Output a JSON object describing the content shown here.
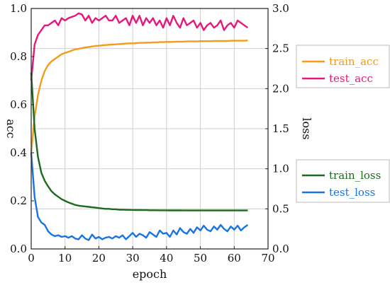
{
  "chart_data": {
    "type": "line",
    "xlabel": "epoch",
    "ylabel_left": "acc",
    "ylabel_right": "loss",
    "xlim": [
      0,
      70
    ],
    "ylim_left": [
      0.0,
      1.0
    ],
    "ylim_right": [
      0.0,
      3.0
    ],
    "x_ticks": [
      0,
      10,
      20,
      30,
      40,
      50,
      60,
      70
    ],
    "x_tick_labels": [
      "0",
      "10",
      "20",
      "30",
      "40",
      "50",
      "60",
      "70"
    ],
    "y_left_ticks": [
      0.0,
      0.2,
      0.4,
      0.6,
      0.8,
      1.0
    ],
    "y_left_tick_labels": [
      "0.0",
      "0.2",
      "0.4",
      "0.6",
      "0.8",
      "1.0"
    ],
    "y_right_ticks": [
      0.0,
      0.5,
      1.0,
      1.5,
      2.0,
      2.5,
      3.0
    ],
    "y_right_tick_labels": [
      "0.0",
      "0.5",
      "1.0",
      "1.5",
      "2.0",
      "2.5",
      "3.0"
    ],
    "grid": true,
    "x": [
      0,
      1,
      2,
      3,
      4,
      5,
      6,
      7,
      8,
      9,
      10,
      11,
      12,
      13,
      14,
      15,
      16,
      17,
      18,
      19,
      20,
      21,
      22,
      23,
      24,
      25,
      26,
      27,
      28,
      29,
      30,
      31,
      32,
      33,
      34,
      35,
      36,
      37,
      38,
      39,
      40,
      41,
      42,
      43,
      44,
      45,
      46,
      47,
      48,
      49,
      50,
      51,
      52,
      53,
      54,
      55,
      56,
      57,
      58,
      59,
      60,
      61,
      62,
      63,
      64
    ],
    "series": [
      {
        "name": "train_acc",
        "axis": "left",
        "color": "#f39b1c",
        "values": [
          0.4,
          0.55,
          0.64,
          0.7,
          0.74,
          0.765,
          0.78,
          0.79,
          0.8,
          0.81,
          0.815,
          0.82,
          0.825,
          0.83,
          0.832,
          0.835,
          0.838,
          0.84,
          0.842,
          0.844,
          0.845,
          0.847,
          0.848,
          0.849,
          0.85,
          0.851,
          0.852,
          0.853,
          0.854,
          0.855,
          0.855,
          0.856,
          0.857,
          0.857,
          0.858,
          0.858,
          0.859,
          0.859,
          0.86,
          0.86,
          0.861,
          0.861,
          0.861,
          0.862,
          0.862,
          0.862,
          0.863,
          0.863,
          0.863,
          0.863,
          0.864,
          0.864,
          0.864,
          0.864,
          0.865,
          0.865,
          0.865,
          0.865,
          0.865,
          0.866,
          0.866,
          0.866,
          0.866,
          0.866,
          0.867
        ]
      },
      {
        "name": "test_acc",
        "axis": "left",
        "color": "#e6177d",
        "values": [
          0.7,
          0.85,
          0.89,
          0.91,
          0.93,
          0.93,
          0.94,
          0.95,
          0.93,
          0.96,
          0.95,
          0.96,
          0.965,
          0.97,
          0.98,
          0.975,
          0.95,
          0.97,
          0.94,
          0.96,
          0.95,
          0.96,
          0.97,
          0.95,
          0.95,
          0.97,
          0.94,
          0.95,
          0.96,
          0.93,
          0.97,
          0.94,
          0.97,
          0.93,
          0.96,
          0.94,
          0.96,
          0.93,
          0.95,
          0.92,
          0.96,
          0.93,
          0.97,
          0.94,
          0.92,
          0.96,
          0.93,
          0.94,
          0.95,
          0.92,
          0.94,
          0.91,
          0.93,
          0.94,
          0.92,
          0.93,
          0.95,
          0.91,
          0.93,
          0.94,
          0.92,
          0.95,
          0.94,
          0.93,
          0.92
        ]
      },
      {
        "name": "train_loss",
        "axis": "right",
        "color": "#1c6b1c",
        "values": [
          2.2,
          1.5,
          1.15,
          0.95,
          0.85,
          0.78,
          0.72,
          0.68,
          0.65,
          0.62,
          0.6,
          0.58,
          0.565,
          0.55,
          0.54,
          0.535,
          0.53,
          0.525,
          0.52,
          0.515,
          0.51,
          0.505,
          0.5,
          0.5,
          0.495,
          0.495,
          0.49,
          0.49,
          0.488,
          0.487,
          0.486,
          0.485,
          0.485,
          0.484,
          0.484,
          0.483,
          0.483,
          0.483,
          0.482,
          0.482,
          0.482,
          0.481,
          0.481,
          0.481,
          0.481,
          0.48,
          0.48,
          0.48,
          0.48,
          0.48,
          0.48,
          0.48,
          0.48,
          0.48,
          0.48,
          0.48,
          0.48,
          0.48,
          0.48,
          0.48,
          0.48,
          0.48,
          0.48,
          0.48,
          0.48
        ]
      },
      {
        "name": "test_loss",
        "axis": "right",
        "color": "#1874e0",
        "values": [
          1.2,
          0.65,
          0.4,
          0.33,
          0.3,
          0.22,
          0.18,
          0.16,
          0.17,
          0.15,
          0.16,
          0.14,
          0.16,
          0.13,
          0.12,
          0.17,
          0.13,
          0.11,
          0.18,
          0.13,
          0.15,
          0.12,
          0.14,
          0.15,
          0.13,
          0.16,
          0.14,
          0.17,
          0.12,
          0.16,
          0.2,
          0.15,
          0.19,
          0.17,
          0.14,
          0.21,
          0.18,
          0.15,
          0.23,
          0.19,
          0.2,
          0.15,
          0.23,
          0.18,
          0.26,
          0.21,
          0.19,
          0.25,
          0.2,
          0.27,
          0.23,
          0.29,
          0.24,
          0.22,
          0.28,
          0.24,
          0.3,
          0.25,
          0.22,
          0.28,
          0.24,
          0.29,
          0.23,
          0.27,
          0.3
        ]
      }
    ],
    "legends": [
      {
        "entries": [
          "train_acc",
          "test_acc"
        ],
        "placement": "right-top"
      },
      {
        "entries": [
          "train_loss",
          "test_loss"
        ],
        "placement": "right-bottom"
      }
    ]
  }
}
